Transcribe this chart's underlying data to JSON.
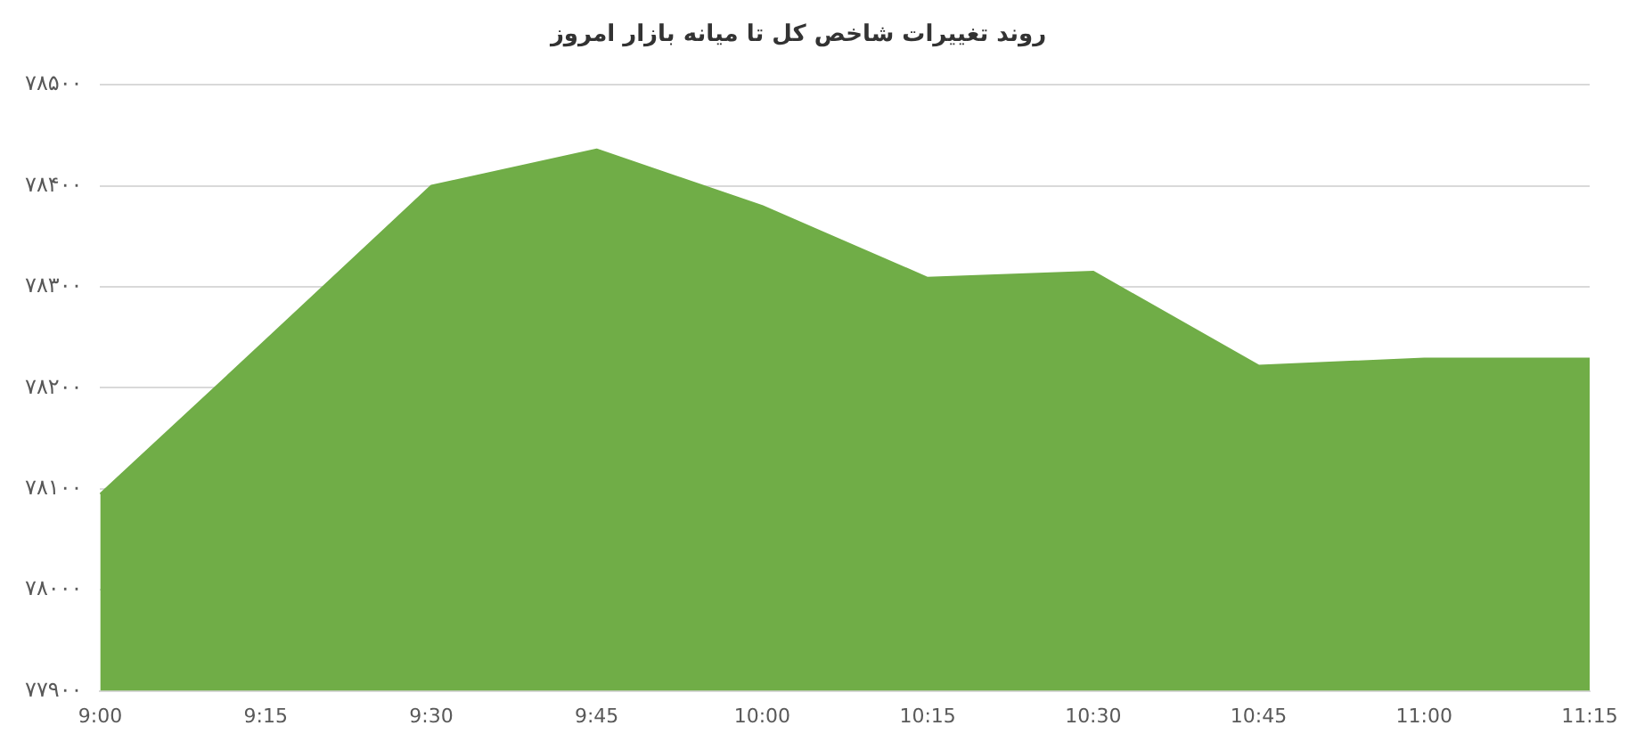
{
  "chart_data": {
    "type": "area",
    "title": "روند تغییرات شاخص کل تا میانه بازار امروز",
    "categories": [
      "9:00",
      "9:15",
      "9:30",
      "9:45",
      "10:00",
      "10:15",
      "10:30",
      "10:45",
      "11:00",
      "11:15"
    ],
    "series": [
      {
        "color": "#70ad47",
        "values": [
          78095,
          78247,
          78400,
          78436,
          78380,
          78309,
          78315,
          78222,
          78229,
          78229
        ]
      }
    ],
    "ylim": [
      77900,
      78500
    ],
    "yticks": [
      {
        "value": 77900,
        "label": "۷۷۹۰۰"
      },
      {
        "value": 78000,
        "label": "۷۸۰۰۰"
      },
      {
        "value": 78100,
        "label": "۷۸۱۰۰"
      },
      {
        "value": 78200,
        "label": "۷۸۲۰۰"
      },
      {
        "value": 78300,
        "label": "۷۸۳۰۰"
      },
      {
        "value": 78400,
        "label": "۷۸۴۰۰"
      },
      {
        "value": 78500,
        "label": "۷۸۵۰۰"
      }
    ],
    "grid": "y",
    "legend": false
  }
}
